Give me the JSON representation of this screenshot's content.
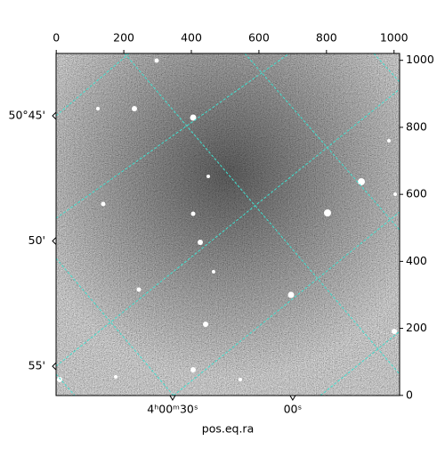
{
  "chart_data": {
    "type": "image",
    "xlabel": "pos.eq.ra",
    "xlim": [
      -0.5,
      1016.5
    ],
    "xticks": [
      0,
      200,
      400,
      600,
      800,
      1000
    ],
    "ylim": [
      -0.5,
      1020.5
    ],
    "yticks": [
      0,
      200,
      400,
      600,
      800,
      1000
    ],
    "ra_lim": [
      14459.1,
      14373.3
    ],
    "ra_ticks": [
      {
        "value": 14430,
        "label": "4ʰ00ᵐ30ˢ"
      },
      {
        "value": 14400,
        "label": "00ˢ"
      }
    ],
    "dec_lim": [
      50.7085,
      50.9362
    ],
    "dec_ticks": [
      {
        "value": 50.75,
        "label": "50°45'"
      },
      {
        "value": 50.8333,
        "label": "50'"
      },
      {
        "value": 50.9167,
        "label": "55'"
      }
    ],
    "grid_color": "#40e0d0"
  }
}
